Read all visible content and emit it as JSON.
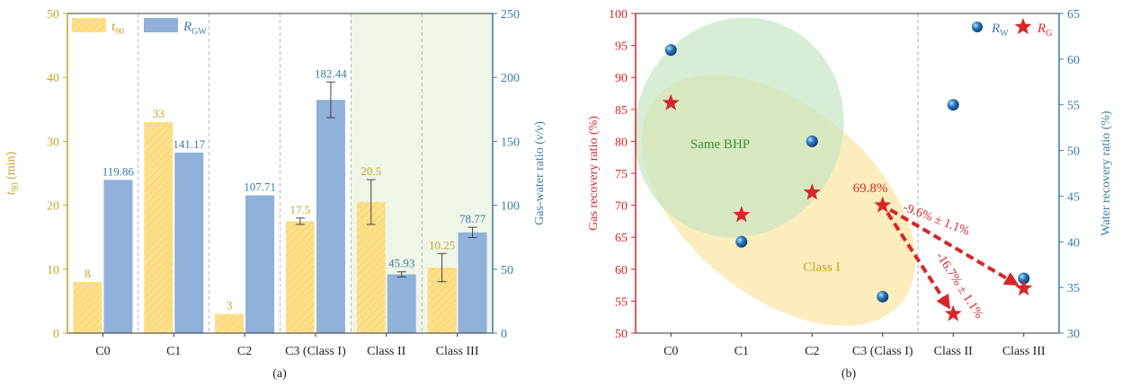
{
  "chart_data": [
    {
      "type": "bar",
      "panel_label": "(a)",
      "categories": [
        "C0",
        "C1",
        "C2",
        "C3 (Class I)",
        "Class II",
        "Class III"
      ],
      "series": [
        {
          "name": "t90",
          "legend_main": "t",
          "legend_sub": "90",
          "axis": "left",
          "values": [
            8,
            33,
            3,
            17.5,
            20.5,
            10.25
          ],
          "labels": [
            "8",
            "33",
            "3",
            "17.5",
            "20.5",
            "10.25"
          ],
          "errors": [
            null,
            null,
            null,
            0.5,
            3.5,
            2.2
          ]
        },
        {
          "name": "RGW",
          "legend_main": "R",
          "legend_sub": "GW",
          "axis": "right",
          "values": [
            119.86,
            141.17,
            107.71,
            182.44,
            45.93,
            78.77
          ],
          "labels": [
            "119.86",
            "141.17",
            "107.71",
            "182.44",
            "45.93",
            "78.77"
          ],
          "errors": [
            null,
            null,
            null,
            14,
            2,
            4
          ]
        }
      ],
      "y_left": {
        "label_main": "t",
        "label_sub": "90",
        "label_unit": " (min)",
        "lim": [
          0,
          50
        ],
        "ticks": [
          "0",
          "10",
          "20",
          "30",
          "40",
          "50"
        ]
      },
      "y_right": {
        "label_main": "Gas-water ratio (",
        "label_unit": "v/v",
        "label_end": ")",
        "lim": [
          0,
          250
        ],
        "ticks": [
          "0",
          "50",
          "100",
          "150",
          "200",
          "250"
        ]
      },
      "shaded_categories": [
        "Class II",
        "Class III"
      ]
    },
    {
      "type": "scatter",
      "panel_label": "(b)",
      "categories": [
        "C0",
        "C1",
        "C2",
        "C3 (Class I)",
        "Class II",
        "Class III"
      ],
      "series": [
        {
          "name": "RG",
          "legend_main": "R",
          "legend_sub": "G",
          "axis": "left",
          "marker": "star",
          "values": [
            86,
            68.5,
            72,
            70,
            53,
            57
          ]
        },
        {
          "name": "RW",
          "legend_main": "R",
          "legend_sub": "W",
          "axis": "right",
          "marker": "sphere",
          "values": [
            61,
            40,
            51,
            34,
            55,
            36
          ]
        }
      ],
      "y_left": {
        "label": "Gas recovery ratio (%)",
        "lim": [
          50,
          100
        ],
        "ticks": [
          "50",
          "55",
          "60",
          "65",
          "70",
          "75",
          "80",
          "85",
          "90",
          "95",
          "100"
        ]
      },
      "y_right": {
        "label": "Water recovery ratio (%)",
        "lim": [
          30,
          65
        ],
        "ticks": [
          "30",
          "35",
          "40",
          "45",
          "50",
          "55",
          "60",
          "65"
        ]
      },
      "annotations": {
        "c3_value": "69.8%",
        "arrow_upper": "-9.6% ± 1.1%",
        "arrow_lower": "-16.7% ± 1.1%",
        "ellipse_green": "Same BHP",
        "ellipse_yellow": "Class I"
      }
    }
  ],
  "colors": {
    "bar_yellow": "#fde08a",
    "bar_blue": "#8fb1da",
    "gold_text": "#c9a227",
    "blue_axis": "#3a7ca5",
    "red": "#d62728",
    "green_fill": "#c7e6c3",
    "green_shade": "#eef6e8",
    "yellow_fill": "#fbeab0"
  }
}
